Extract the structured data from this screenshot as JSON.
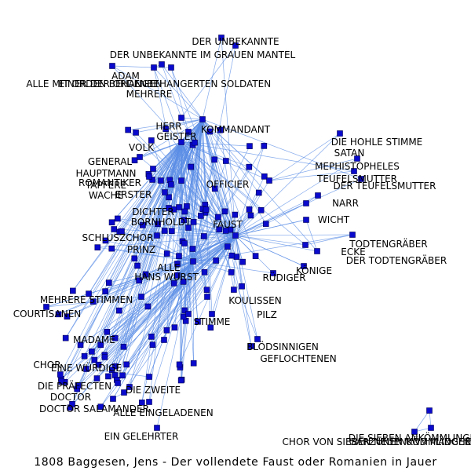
{
  "caption": "1808 Baggesen, Jens - Der vollendete Faust oder Romanien in Jauer",
  "colors": {
    "node": "#0a0acc",
    "edge": "#5b8ee6",
    "label": "#000000",
    "background": "#ffffff"
  },
  "nodes": [
    {
      "id": "DER UNBEKANNTE"
    },
    {
      "id": "DER UNBEKANNTE IM GRAUEN MANTEL"
    },
    {
      "id": "ADAM"
    },
    {
      "id": "ALLE MIT ORDEN BEHANGEN"
    },
    {
      "id": "EINER DER ORDENBEHANGERTEN SOLDATEN"
    },
    {
      "id": "MEHRERE"
    },
    {
      "id": "KOMMANDANT"
    },
    {
      "id": "HERR"
    },
    {
      "id": "GEISTER"
    },
    {
      "id": "VOLK"
    },
    {
      "id": "GENERAL"
    },
    {
      "id": "HAUPTMANN"
    },
    {
      "id": "TAPFERE"
    },
    {
      "id": "WACHE"
    },
    {
      "id": "ROMANTIKER"
    },
    {
      "id": "OFFICIER"
    },
    {
      "id": "DIE HOHLE STIMME"
    },
    {
      "id": "SATAN"
    },
    {
      "id": "MEPHISTOPHELES"
    },
    {
      "id": "TEUFELSMUTTER"
    },
    {
      "id": "DER TEUFELSMUTTER"
    },
    {
      "id": "NARR"
    },
    {
      "id": "ERSTER"
    },
    {
      "id": "FAUST"
    },
    {
      "id": "DICHTER"
    },
    {
      "id": "BORNHOLDT"
    },
    {
      "id": "SCHLUSZCHOR"
    },
    {
      "id": "PRINZ"
    },
    {
      "id": "WICHT"
    },
    {
      "id": "TODTENGRÄBER"
    },
    {
      "id": "DER TODTENGRÄBER"
    },
    {
      "id": "ECKE"
    },
    {
      "id": "KÖNIGE"
    },
    {
      "id": "RÜDIGER"
    },
    {
      "id": "ALLE"
    },
    {
      "id": "HANS WURST"
    },
    {
      "id": "MEHRERE STIMMEN"
    },
    {
      "id": "COURTISANEN"
    },
    {
      "id": "KOULISSEN"
    },
    {
      "id": "PILZ"
    },
    {
      "id": "STIMME"
    },
    {
      "id": "MADAME"
    },
    {
      "id": "BLÖDSINNIGEN"
    },
    {
      "id": "GEFLOCHTENEN"
    },
    {
      "id": "CHOR"
    },
    {
      "id": "EINE WÜRDIGE"
    },
    {
      "id": "DIE PRÄFECTEN"
    },
    {
      "id": "DIE ZWEITE"
    },
    {
      "id": "DOCTOR"
    },
    {
      "id": "DOCTOR SALAMANDER"
    },
    {
      "id": "ALLE EINGELADENEN"
    },
    {
      "id": "EIN GELEHRTER"
    },
    {
      "id": "GARZUNEN UND MÄDCHEN"
    },
    {
      "id": "DIE SIEBEN ANKÖMMLINGE"
    },
    {
      "id": "CHOR VON SIEBEN NEUENKÖMMLINGEN"
    }
  ],
  "edges": [
    [
      "DER UNBEKANNTE",
      "KOMMANDANT"
    ],
    [
      "DER UNBEKANNTE IM GRAUEN MANTEL",
      "HERR"
    ],
    [
      "ADAM",
      "MEHRERE"
    ],
    [
      "ALLE MIT ORDEN BEHANGEN",
      "MEHRERE"
    ],
    [
      "EINER DER ORDENBEHANGERTEN SOLDATEN",
      "MEHRERE"
    ],
    [
      "ADAM",
      "KOMMANDANT"
    ],
    [
      "ALLE MIT ORDEN BEHANGEN",
      "HERR"
    ],
    [
      "EINER DER ORDENBEHANGERTEN SOLDATEN",
      "GEISTER"
    ],
    [
      "MEHRERE",
      "KOMMANDANT"
    ],
    [
      "MEHRERE",
      "VOLK"
    ],
    [
      "KOMMANDANT",
      "VOLK"
    ],
    [
      "HERR",
      "GEISTER"
    ],
    [
      "GENERAL",
      "VOLK"
    ],
    [
      "HAUPTMANN",
      "VOLK"
    ],
    [
      "TAPFERE",
      "VOLK"
    ],
    [
      "WACHE",
      "VOLK"
    ],
    [
      "ROMANTIKER",
      "VOLK"
    ],
    [
      "OFFICIER",
      "VOLK"
    ],
    [
      "OFFICIER",
      "FAUST"
    ],
    [
      "DIE HOHLE STIMME",
      "OFFICIER"
    ],
    [
      "SATAN",
      "OFFICIER"
    ],
    [
      "MEPHISTOPHELES",
      "OFFICIER"
    ],
    [
      "TEUFELSMUTTER",
      "FAUST"
    ],
    [
      "DER TEUFELSMUTTER",
      "NARR"
    ],
    [
      "NARR",
      "FAUST"
    ],
    [
      "ERSTER",
      "FAUST"
    ],
    [
      "DICHTER",
      "FAUST"
    ],
    [
      "BORNHOLDT",
      "FAUST"
    ],
    [
      "SCHLUSZCHOR",
      "FAUST"
    ],
    [
      "PRINZ",
      "FAUST"
    ],
    [
      "WICHT",
      "FAUST"
    ],
    [
      "TODTENGRÄBER",
      "FAUST"
    ],
    [
      "DER TODTENGRÄBER",
      "FAUST"
    ],
    [
      "ECKE",
      "FAUST"
    ],
    [
      "KÖNIGE",
      "FAUST"
    ],
    [
      "RÜDIGER",
      "FAUST"
    ],
    [
      "ALLE",
      "FAUST"
    ],
    [
      "HANS WURST",
      "FAUST"
    ],
    [
      "HANS WURST",
      "ALLE"
    ],
    [
      "MEHRERE STIMMEN",
      "HANS WURST"
    ],
    [
      "COURTISANEN",
      "HANS WURST"
    ],
    [
      "KOULISSEN",
      "FAUST"
    ],
    [
      "PILZ",
      "FAUST"
    ],
    [
      "STIMME",
      "HANS WURST"
    ],
    [
      "MADAME",
      "HANS WURST"
    ],
    [
      "BLÖDSINNIGEN",
      "FAUST"
    ],
    [
      "GEFLOCHTENEN",
      "FAUST"
    ],
    [
      "CHOR",
      "HANS WURST"
    ],
    [
      "EINE WÜRDIGE",
      "HANS WURST"
    ],
    [
      "DIE PRÄFECTEN",
      "HANS WURST"
    ],
    [
      "DIE ZWEITE",
      "HANS WURST"
    ],
    [
      "DOCTOR",
      "HANS WURST"
    ],
    [
      "DOCTOR SALAMANDER",
      "HANS WURST"
    ],
    [
      "ALLE EINGELADENEN",
      "HANS WURST"
    ],
    [
      "EIN GELEHRTER",
      "HANS WURST"
    ],
    [
      "GENERAL",
      "FAUST"
    ],
    [
      "HAUPTMANN",
      "ERSTER"
    ],
    [
      "GEISTER",
      "FAUST"
    ],
    [
      "VOLK",
      "FAUST"
    ],
    [
      "WICHT",
      "ECKE"
    ],
    [
      "TODTENGRÄBER",
      "DER TODTENGRÄBER"
    ],
    [
      "KOULISSEN",
      "STIMME"
    ],
    [
      "MEHRERE STIMMEN",
      "COURTISANEN"
    ],
    [
      "DOCTOR",
      "DOCTOR SALAMANDER"
    ],
    [
      "CHOR",
      "EINE WÜRDIGE"
    ],
    [
      "GARZUNEN UND MÄDCHEN",
      "DIE SIEBEN ANKÖMMLINGE"
    ],
    [
      "GARZUNEN UND MÄDCHEN",
      "CHOR VON SIEBEN NEUENKÖMMLINGEN"
    ],
    [
      "DIE SIEBEN ANKÖMMLINGE",
      "CHOR VON SIEBEN NEUENKÖMMLINGEN"
    ]
  ]
}
